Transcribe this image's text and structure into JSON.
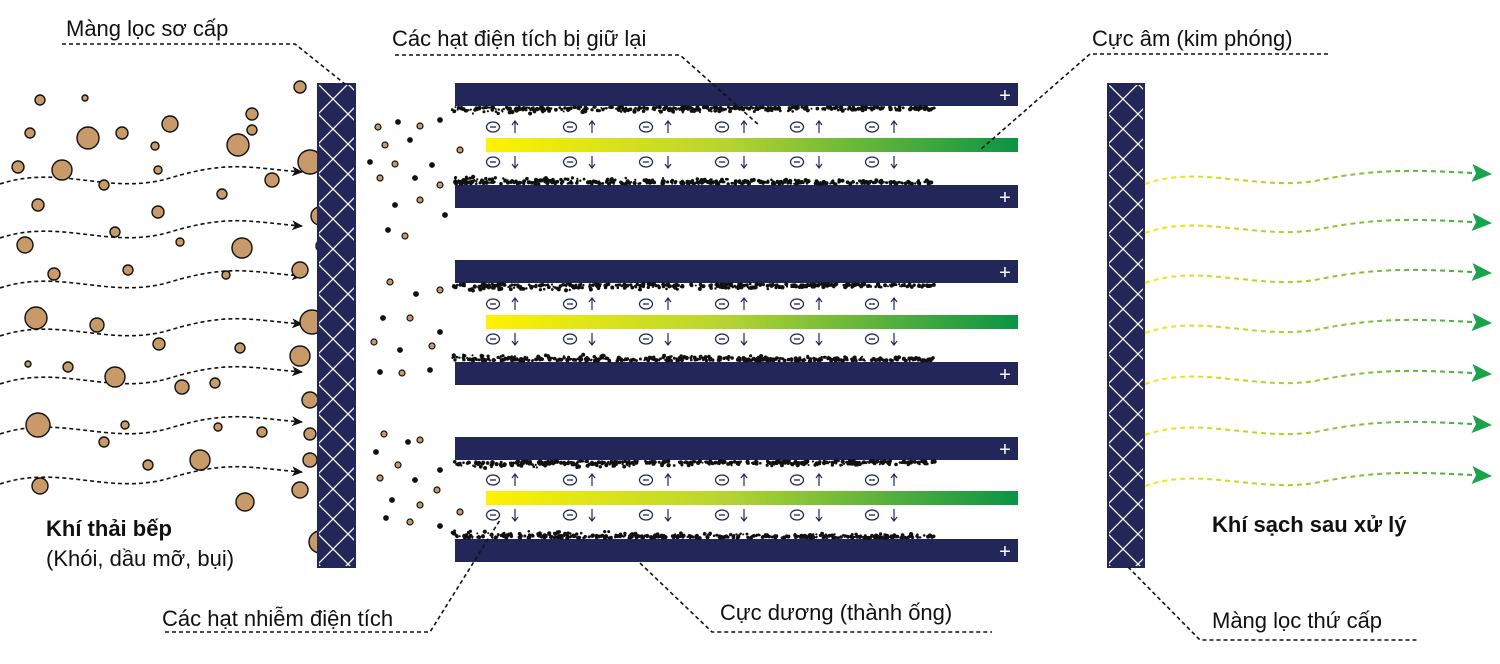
{
  "labels": {
    "primary_filter": "Màng lọc sơ cấp",
    "trapped_particles": "Các hạt điện tích bị giữ lại",
    "cathode": "Cực âm (kim phóng)",
    "charged_particles": "Các hạt nhiễm điện tích",
    "anode": "Cực dương (thành ống)",
    "secondary_filter": "Màng lọc thứ cấp",
    "exhaust_title": "Khí thải bếp",
    "exhaust_subtitle": "(Khói, dầu mỡ, bụi)",
    "clean_air": "Khí sạch sau xử lý"
  },
  "symbols": {
    "plus": "+",
    "ion": "⊖"
  },
  "colors": {
    "plate": "#222659",
    "particle_fill": "#c89a69",
    "particle_stroke": "#111111",
    "cathode_start": "#fff200",
    "cathode_end": "#0a9444",
    "arrow_green": "#1aa34a",
    "ion": "#222659"
  }
}
